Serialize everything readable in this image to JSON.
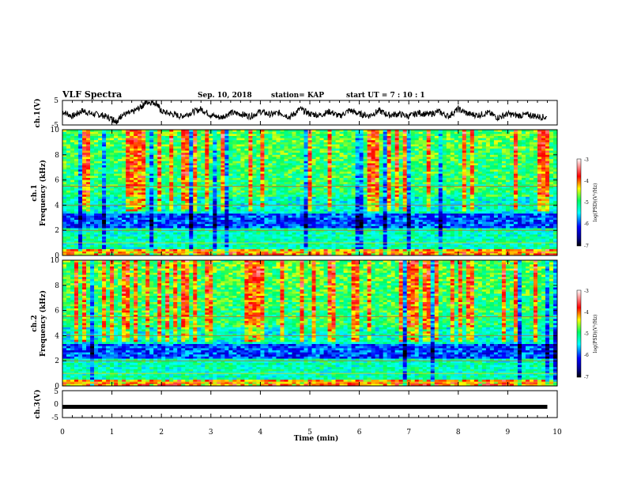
{
  "header": {
    "title": "VLF Spectra",
    "date": "Sep. 10, 2018",
    "station": "station= KAP",
    "start": "start  UT =   7 : 10 : 1"
  },
  "chart_data": [
    {
      "type": "line",
      "panel": "ch1-waveform",
      "ylabel": "ch.1(V)",
      "ylim": [
        -5,
        5
      ],
      "yticks": [
        "5",
        "-5"
      ],
      "xlim": [
        0,
        10
      ],
      "values_description_free": true,
      "x": [
        0,
        0.2,
        0.4,
        0.6,
        0.8,
        1.0,
        1.1,
        1.2,
        1.4,
        1.6,
        1.7,
        1.9,
        2.0,
        2.2,
        2.4,
        2.6,
        2.8,
        3.0,
        3.2,
        3.4,
        3.6,
        3.8,
        4.0,
        4.2,
        4.4,
        4.6,
        4.8,
        5.0,
        5.2,
        5.4,
        5.6,
        5.8,
        6.0,
        6.2,
        6.4,
        6.6,
        6.8,
        7.0,
        7.2,
        7.4,
        7.6,
        7.8,
        8.0,
        8.2,
        8.4,
        8.6,
        8.8,
        9.0,
        9.2,
        9.4,
        9.6,
        9.8
      ],
      "y": [
        0.5,
        -1.5,
        0.8,
        -0.5,
        -1.0,
        -2.5,
        -3.5,
        -1.0,
        0.0,
        2.5,
        4.5,
        4.0,
        0.5,
        -0.5,
        -1.5,
        0.0,
        1.5,
        -1.0,
        -2.0,
        0.0,
        -0.5,
        -1.5,
        0.5,
        -0.8,
        0.0,
        -1.8,
        1.5,
        -0.5,
        -1.0,
        0.5,
        -1.5,
        1.0,
        -0.5,
        -1.2,
        0.8,
        -1.0,
        -0.5,
        -1.5,
        0.0,
        -0.8,
        0.5,
        -1.5,
        1.5,
        -0.5,
        -1.0,
        0.0,
        -2.0,
        -0.5,
        -1.2,
        -0.8,
        -1.5,
        -2.0
      ]
    },
    {
      "type": "heatmap",
      "panel": "ch1-spectrogram",
      "ylabel_line1": "ch.1",
      "ylabel_line2": "Frequency (kHz)",
      "ylim": [
        0,
        10
      ],
      "yticks": [
        "0",
        "2",
        "4",
        "6",
        "8",
        "10"
      ],
      "xlim": [
        0,
        10
      ],
      "colorbar": {
        "label": "log(PSD)(V²/Hz)",
        "range": [
          -7,
          -3
        ],
        "ticks": [
          "-3",
          "-4",
          "-5",
          "-6",
          "-7"
        ]
      }
    },
    {
      "type": "heatmap",
      "panel": "ch2-spectrogram",
      "ylabel_line1": "ch.2",
      "ylabel_line2": "Frequency (kHz)",
      "ylim": [
        0,
        10
      ],
      "yticks": [
        "0",
        "2",
        "4",
        "6",
        "8",
        "10"
      ],
      "xlim": [
        0,
        10
      ],
      "colorbar": {
        "label": "log(PSD)(V²/Hz)",
        "range": [
          -7,
          -3
        ],
        "ticks": [
          "-3",
          "-4",
          "-5",
          "-6",
          "-7"
        ]
      }
    },
    {
      "type": "line",
      "panel": "ch3-waveform",
      "ylabel": "ch.3(V)",
      "ylim": [
        -5,
        5
      ],
      "yticks": [
        "5",
        "0",
        "-5"
      ],
      "xlim": [
        0,
        9.8
      ],
      "x": [
        0,
        9.8
      ],
      "y": [
        -1,
        -1
      ]
    }
  ],
  "xaxis": {
    "label": "Time  (min)",
    "ticks": [
      "0",
      "1",
      "2",
      "3",
      "4",
      "5",
      "6",
      "7",
      "8",
      "9",
      "10"
    ]
  }
}
